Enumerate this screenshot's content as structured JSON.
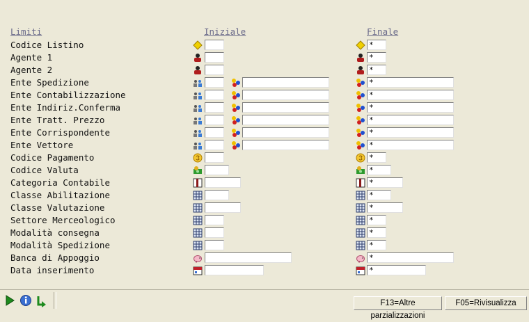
{
  "headers": {
    "limiti": "Limiti",
    "iniziale": "Iniziale",
    "finale": "Finale"
  },
  "rows": [
    {
      "label": "Codice Listino",
      "icon": "diamond-icon",
      "final_value": "*"
    },
    {
      "label": "Agente 1",
      "icon": "agent-icon",
      "final_value": "*"
    },
    {
      "label": "Agente 2",
      "icon": "agent-icon",
      "final_value": "*"
    },
    {
      "label": "Ente Spedizione",
      "icon": "people-icon",
      "icon2": "balls-icon",
      "final_value": "*"
    },
    {
      "label": "Ente Contabilizzazione",
      "icon": "people-icon",
      "icon2": "balls-icon",
      "final_value": "*"
    },
    {
      "label": "Ente Indiriz.Conferma",
      "icon": "people-icon",
      "icon2": "balls-icon",
      "final_value": "*"
    },
    {
      "label": "Ente Tratt. Prezzo",
      "icon": "people-icon",
      "icon2": "balls-icon",
      "final_value": "*"
    },
    {
      "label": "Ente Corrispondente",
      "icon": "people-icon",
      "icon2": "balls-icon",
      "final_value": "*"
    },
    {
      "label": "Ente Vettore",
      "icon": "people-icon",
      "icon2": "balls-icon",
      "final_value": "*"
    },
    {
      "label": "Codice Pagamento",
      "icon": "coin-icon",
      "final_value": "*"
    },
    {
      "label": "Codice Valuta",
      "icon": "money-icon",
      "final_value": "*"
    },
    {
      "label": "Categoria Contabile",
      "icon": "book-icon",
      "final_value": "*"
    },
    {
      "label": "Classe Abilitazione",
      "icon": "grid-icon",
      "final_value": "*"
    },
    {
      "label": "Classe Valutazione",
      "icon": "grid-icon",
      "final_value": "*"
    },
    {
      "label": "Settore Merceologico",
      "icon": "grid-icon",
      "final_value": "*"
    },
    {
      "label": "Modalità consegna",
      "icon": "grid-icon",
      "final_value": "*"
    },
    {
      "label": "Modalità Spedizione",
      "icon": "grid-icon",
      "final_value": "*"
    },
    {
      "label": "Banca di Appoggio",
      "icon": "pig-icon",
      "final_value": "*"
    },
    {
      "label": "Data inserimento",
      "icon": "calendar-icon",
      "final_value": "*"
    }
  ],
  "toolbar": {
    "run": "run-icon",
    "info": "info-icon",
    "refresh": "refresh-icon"
  },
  "function_keys": {
    "f13": "F13=Altre parzializzazioni",
    "f05": "F05=Rivisualizza"
  }
}
